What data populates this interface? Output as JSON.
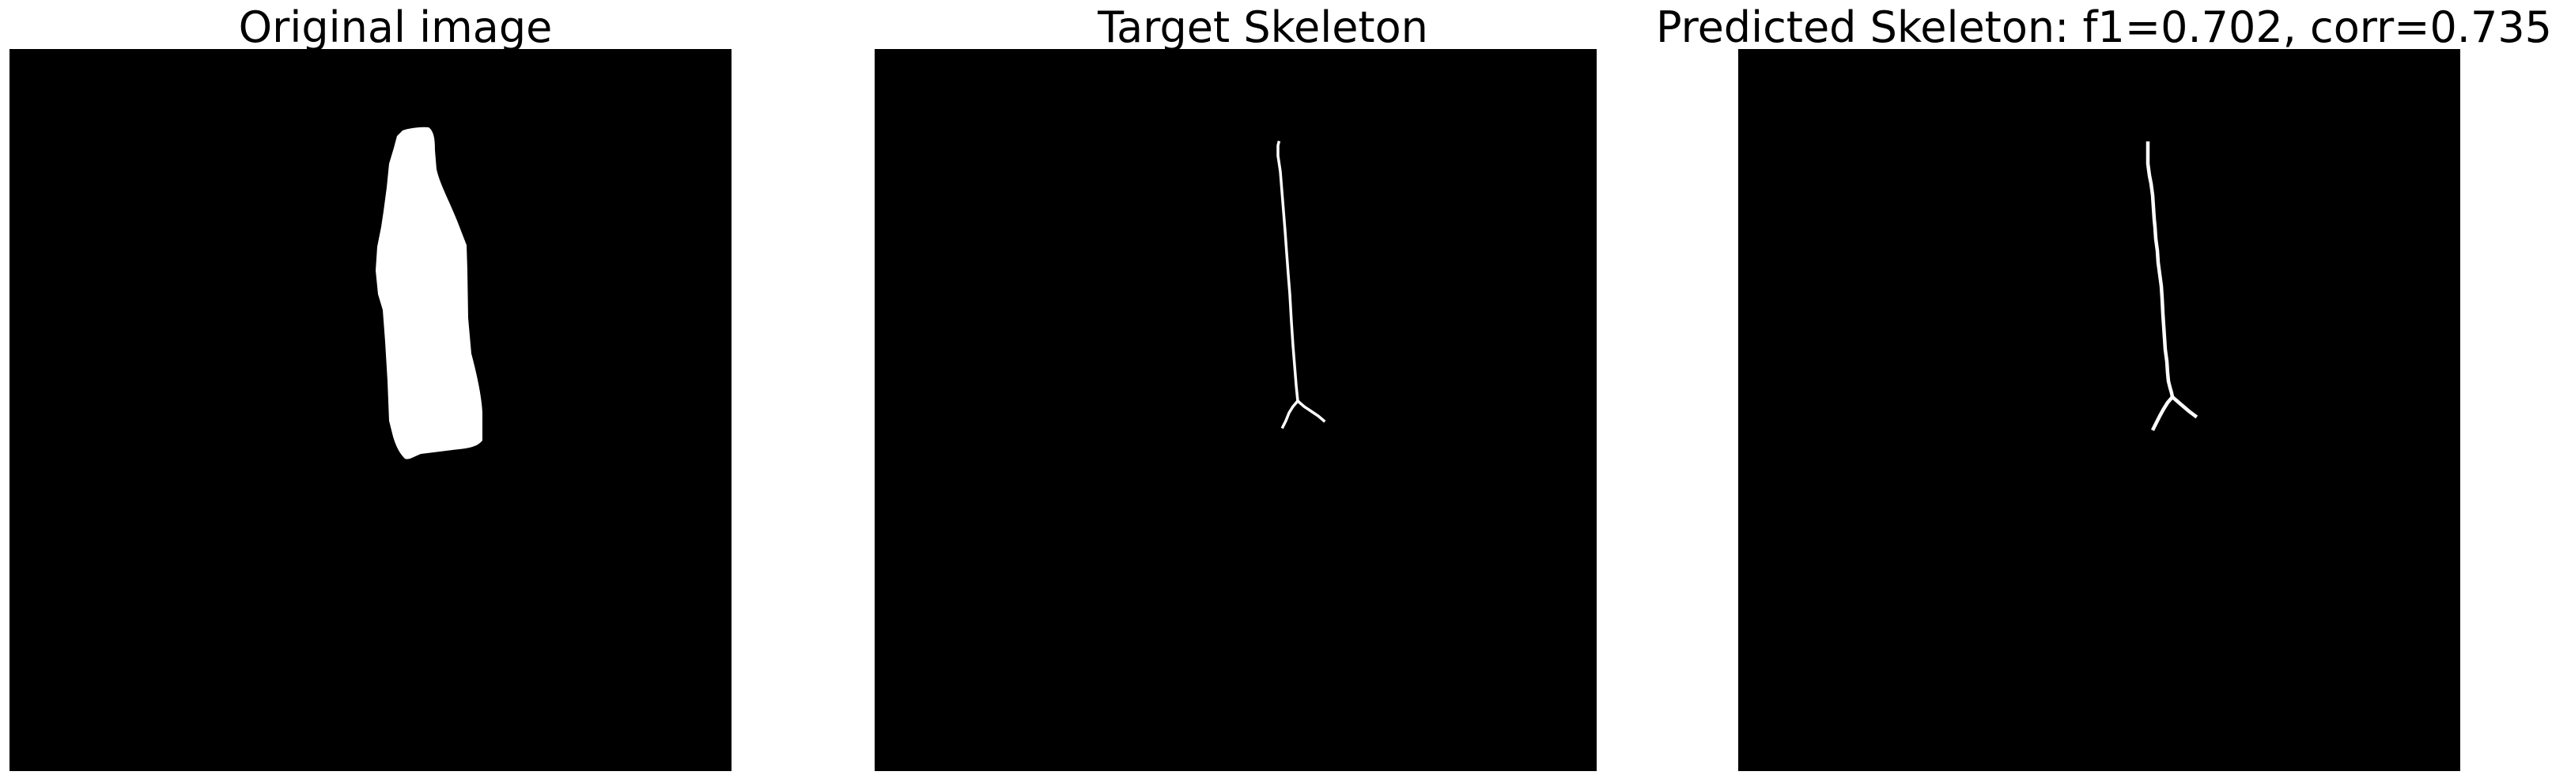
{
  "panels": [
    {
      "title": "Original image"
    },
    {
      "title": "Target Skeleton"
    },
    {
      "title": "Predicted Skeleton: f1=0.702, corr=0.735"
    }
  ],
  "colors": {
    "background": "#000000",
    "foreground": "#ffffff",
    "page": "#ffffff"
  }
}
